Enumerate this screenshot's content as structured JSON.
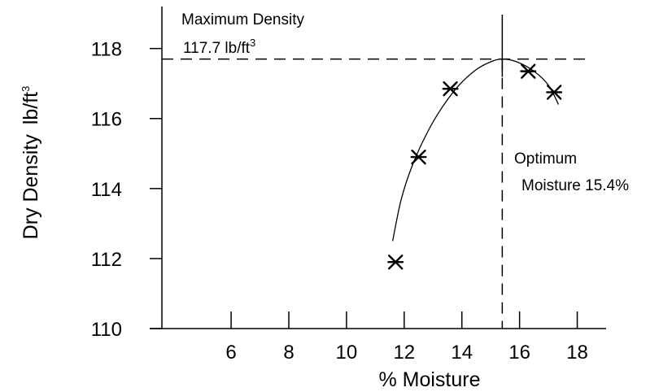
{
  "chart_data": {
    "type": "scatter",
    "xlabel": "% Moisture",
    "ylabel": "Dry Density",
    "ylabel_unit": "lb/ft",
    "ylabel_unit_exp": "3",
    "xlim": [
      3.6,
      19.0
    ],
    "ylim": [
      110,
      119.2
    ],
    "xticks": [
      6,
      8,
      10,
      12,
      14,
      16,
      18
    ],
    "yticks": [
      110,
      112,
      114,
      116,
      118
    ],
    "grid": false,
    "points": [
      {
        "x": 11.7,
        "y": 111.9
      },
      {
        "x": 12.5,
        "y": 114.9
      },
      {
        "x": 13.6,
        "y": 116.85
      },
      {
        "x": 16.3,
        "y": 117.35
      },
      {
        "x": 17.2,
        "y": 116.75
      }
    ],
    "curve": [
      {
        "x": 11.6,
        "y": 112.5
      },
      {
        "x": 11.9,
        "y": 113.7
      },
      {
        "x": 12.3,
        "y": 114.7
      },
      {
        "x": 12.8,
        "y": 115.6
      },
      {
        "x": 13.3,
        "y": 116.3
      },
      {
        "x": 13.9,
        "y": 116.95
      },
      {
        "x": 14.5,
        "y": 117.4
      },
      {
        "x": 15.0,
        "y": 117.62
      },
      {
        "x": 15.4,
        "y": 117.7
      },
      {
        "x": 15.9,
        "y": 117.62
      },
      {
        "x": 16.5,
        "y": 117.35
      },
      {
        "x": 17.0,
        "y": 116.95
      },
      {
        "x": 17.35,
        "y": 116.4
      }
    ],
    "max_density": 117.7,
    "optimum_moisture": 15.4,
    "annotations": {
      "max_title": "Maximum Density",
      "max_value": "117.7 lb/ft",
      "max_value_exp": "3",
      "opt_line1": "Optimum",
      "opt_line2": "Moisture 15.4%"
    }
  }
}
